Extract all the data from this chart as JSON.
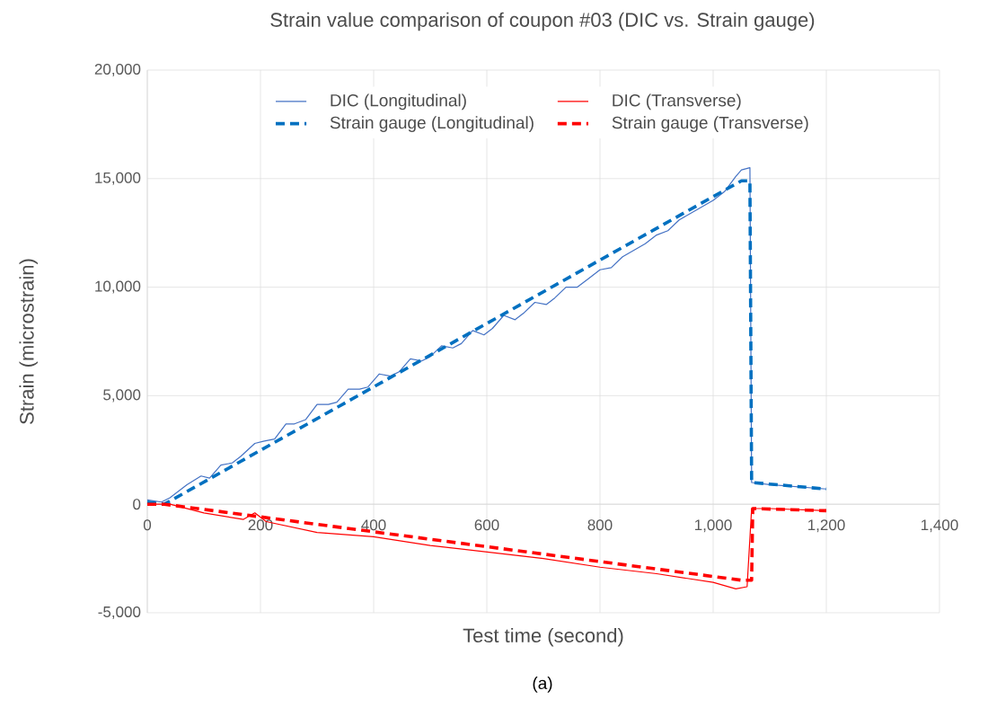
{
  "chart_data": {
    "type": "line",
    "title": "Strain value comparison of coupon #03 (DIC vs. Strain gauge)",
    "xlabel": "Test time (second)",
    "ylabel": "Strain (microstrain)",
    "annotations": [
      "(a)"
    ],
    "xlim": [
      0,
      1400
    ],
    "xticks": [
      {
        "value": 0,
        "label": "0"
      },
      {
        "value": 200,
        "label": "200"
      },
      {
        "value": 400,
        "label": "400"
      },
      {
        "value": 600,
        "label": "600"
      },
      {
        "value": 800,
        "label": "800"
      },
      {
        "value": 1000,
        "label": "1,000"
      },
      {
        "value": 1200,
        "label": "1,200"
      },
      {
        "value": 1400,
        "label": "1,400"
      }
    ],
    "ylim": [
      -5000,
      20000
    ],
    "yticks": [
      {
        "value": -5000,
        "label": "-5,000"
      },
      {
        "value": 0,
        "label": "0"
      },
      {
        "value": 5000,
        "label": "5,000"
      },
      {
        "value": 10000,
        "label": "10,000"
      },
      {
        "value": 15000,
        "label": "15,000"
      },
      {
        "value": 20000,
        "label": "20,000"
      }
    ],
    "grid": true,
    "legend": "top",
    "marker": "none",
    "series": [
      {
        "name": "DIC (Longitudinal)",
        "color": "#4472c4",
        "line_style": "solid",
        "x": [
          0,
          25,
          40,
          70,
          95,
          110,
          130,
          150,
          165,
          190,
          205,
          225,
          245,
          260,
          280,
          300,
          320,
          335,
          355,
          375,
          390,
          410,
          430,
          445,
          465,
          485,
          500,
          520,
          540,
          555,
          575,
          595,
          610,
          630,
          650,
          665,
          685,
          705,
          720,
          740,
          760,
          780,
          800,
          820,
          840,
          860,
          880,
          900,
          920,
          940,
          960,
          980,
          1000,
          1020,
          1040,
          1050,
          1065,
          1068,
          1100,
          1150,
          1200
        ],
        "values": [
          200,
          100,
          300,
          900,
          1300,
          1200,
          1800,
          1900,
          2200,
          2800,
          2900,
          3000,
          3700,
          3700,
          3900,
          4600,
          4600,
          4700,
          5300,
          5300,
          5400,
          6000,
          5900,
          6100,
          6700,
          6600,
          6800,
          7300,
          7200,
          7400,
          8000,
          7800,
          8100,
          8700,
          8500,
          8800,
          9300,
          9200,
          9500,
          10000,
          10000,
          10400,
          10800,
          10900,
          11400,
          11700,
          12000,
          12400,
          12600,
          13100,
          13400,
          13700,
          14000,
          14400,
          15100,
          15400,
          15500,
          1000,
          900,
          800,
          700
        ]
      },
      {
        "name": "DIC (Transverse)",
        "color": "#ff0000",
        "line_style": "solid",
        "x": [
          0,
          40,
          100,
          170,
          190,
          210,
          300,
          400,
          500,
          600,
          700,
          800,
          900,
          1000,
          1040,
          1060,
          1068,
          1100,
          1200
        ],
        "values": [
          0,
          0,
          -400,
          -700,
          -400,
          -800,
          -1300,
          -1500,
          -1900,
          -2200,
          -2500,
          -2900,
          -3200,
          -3600,
          -3900,
          -3800,
          -200,
          -200,
          -300
        ]
      },
      {
        "name": "Strain gauge (Longitudinal)",
        "color": "#0070c0",
        "line_style": "dashed",
        "x": [
          0,
          30,
          1050,
          1065,
          1068,
          1200
        ],
        "values": [
          100,
          0,
          14900,
          14900,
          1000,
          700
        ]
      },
      {
        "name": "Strain gauge (Transverse)",
        "color": "#ff0000",
        "line_style": "dashed",
        "x": [
          0,
          30,
          1050,
          1068,
          1070,
          1200
        ],
        "values": [
          0,
          0,
          -3500,
          -3500,
          -200,
          -300
        ]
      }
    ]
  }
}
